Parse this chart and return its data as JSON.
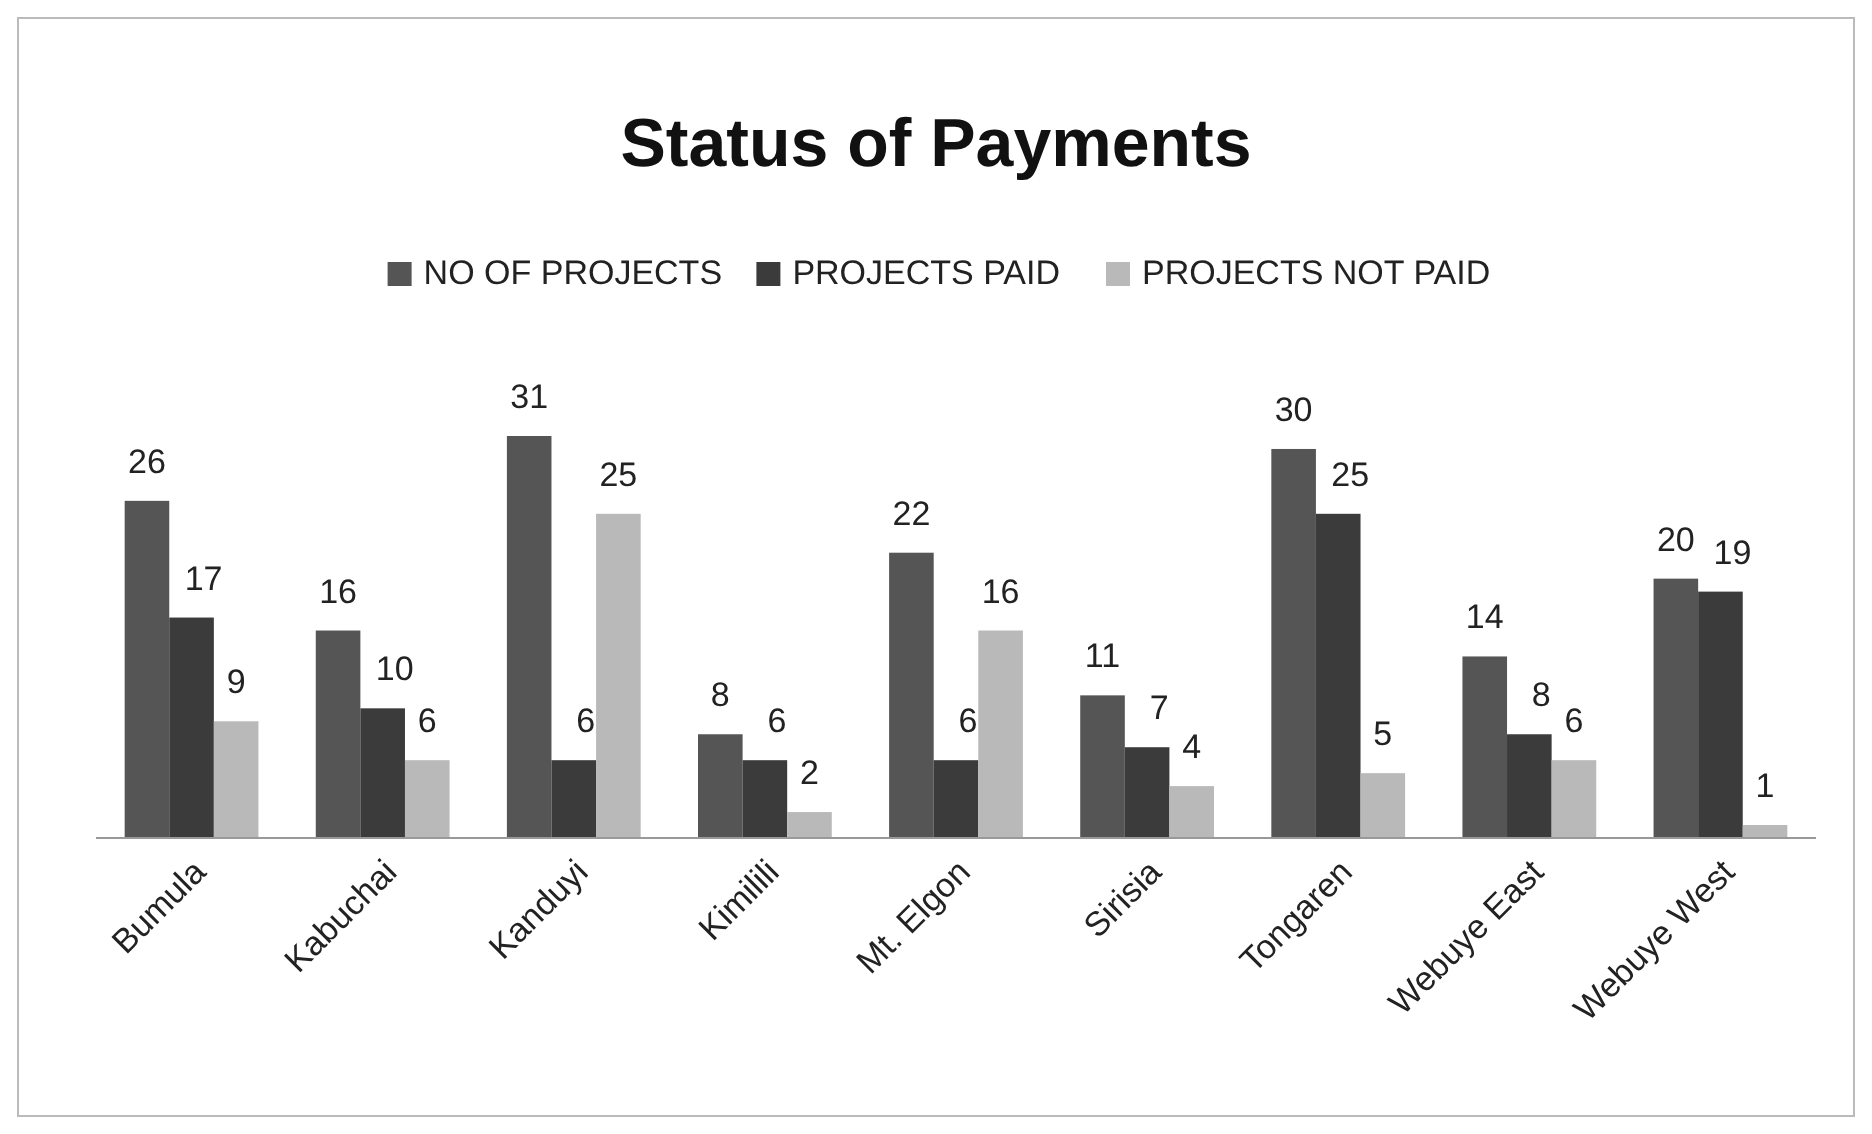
{
  "chart_data": {
    "type": "bar",
    "title": "Status of Payments",
    "categories": [
      "Bumula",
      "Kabuchai",
      "Kanduyi",
      "Kimilili",
      "Mt. Elgon",
      "Sirisia",
      "Tongaren",
      "Webuye East",
      "Webuye West"
    ],
    "series": [
      {
        "name": "NO OF PROJECTS",
        "color": "#555555",
        "values": [
          26,
          16,
          31,
          8,
          22,
          11,
          30,
          14,
          20
        ]
      },
      {
        "name": "PROJECTS PAID",
        "color": "#3b3b3b",
        "values": [
          17,
          10,
          6,
          6,
          6,
          7,
          25,
          8,
          19
        ]
      },
      {
        "name": "PROJECTS NOT PAID",
        "color": "#b9b9b9",
        "values": [
          9,
          6,
          25,
          2,
          16,
          4,
          5,
          6,
          1
        ]
      }
    ],
    "data_labels": true,
    "legend": "top",
    "grid": false
  }
}
